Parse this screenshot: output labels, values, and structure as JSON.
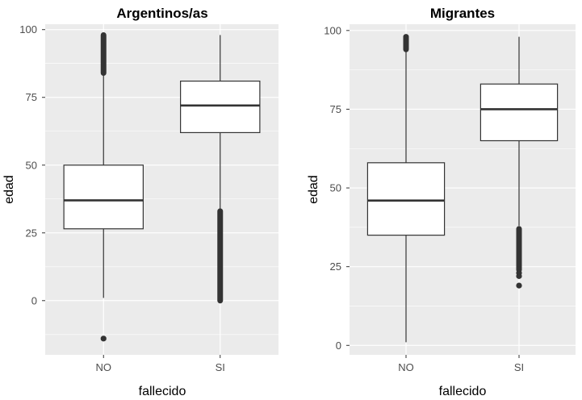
{
  "chart_data": [
    {
      "type": "box",
      "title": "Argentinos/as",
      "xlabel": "fallecido",
      "ylabel": "edad",
      "categories": [
        "NO",
        "SI"
      ],
      "ylim": [
        -20,
        102
      ],
      "yticks": [
        0,
        25,
        50,
        75,
        100
      ],
      "grid": true,
      "boxes": [
        {
          "category": "NO",
          "whisker_low": 1,
          "q1": 26.5,
          "median": 37,
          "q3": 50,
          "whisker_high": 84,
          "outlier_runs": [
            [
              84,
              98
            ]
          ],
          "outliers": [
            -14
          ]
        },
        {
          "category": "SI",
          "whisker_low": 33,
          "q1": 62,
          "median": 72,
          "q3": 81,
          "whisker_high": 98,
          "outlier_runs": [
            [
              0,
              33
            ]
          ],
          "outliers": []
        }
      ]
    },
    {
      "type": "box",
      "title": "Migrantes",
      "xlabel": "fallecido",
      "ylabel": "edad",
      "categories": [
        "NO",
        "SI"
      ],
      "ylim": [
        -3,
        102
      ],
      "yticks": [
        0,
        25,
        50,
        75,
        100
      ],
      "grid": true,
      "boxes": [
        {
          "category": "NO",
          "whisker_low": 1,
          "q1": 35,
          "median": 46,
          "q3": 58,
          "whisker_high": 94,
          "outlier_runs": [
            [
              94,
              98
            ]
          ],
          "outliers": []
        },
        {
          "category": "SI",
          "whisker_low": 38,
          "q1": 65,
          "median": 75,
          "q3": 83,
          "whisker_high": 98,
          "outlier_runs": [
            [
              24,
              37
            ]
          ],
          "outliers": [
            23,
            22,
            19
          ]
        }
      ]
    }
  ]
}
